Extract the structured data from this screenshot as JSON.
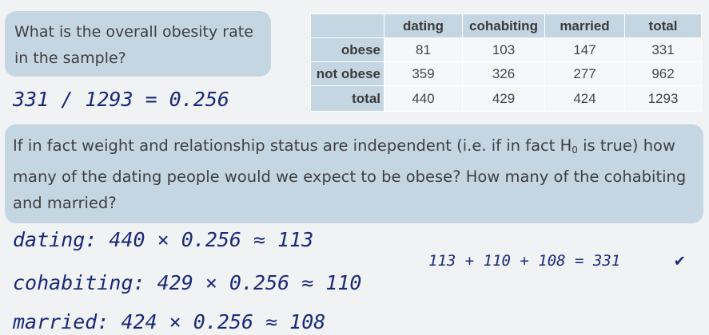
{
  "question1": "What is the overall obesity rate in the sample?",
  "answer1": "331 / 1293 = 0.256",
  "table": {
    "columns": [
      "dating",
      "cohabiting",
      "married",
      "total"
    ],
    "rows": [
      {
        "label": "obese",
        "values": [
          "81",
          "103",
          "147",
          "331"
        ]
      },
      {
        "label": "not obese",
        "values": [
          "359",
          "326",
          "277",
          "962"
        ]
      },
      {
        "label": "total",
        "values": [
          "440",
          "429",
          "424",
          "1293"
        ]
      }
    ]
  },
  "question2_part1": "If in fact weight and relationship status are independent (i.e. if in fact H",
  "question2_sub": "0",
  "question2_part2": " is true) how many of the dating people would we expect to be obese? How many of the cohabiting and married?",
  "work": {
    "dating": "dating: 440 × 0.256 ≈ 113",
    "cohabiting": "cohabiting: 429 × 0.256 ≈ 110",
    "married": "married: 424 × 0.256 ≈ 108",
    "sum": "113 + 110 + 108 = 331",
    "check": "✔"
  }
}
